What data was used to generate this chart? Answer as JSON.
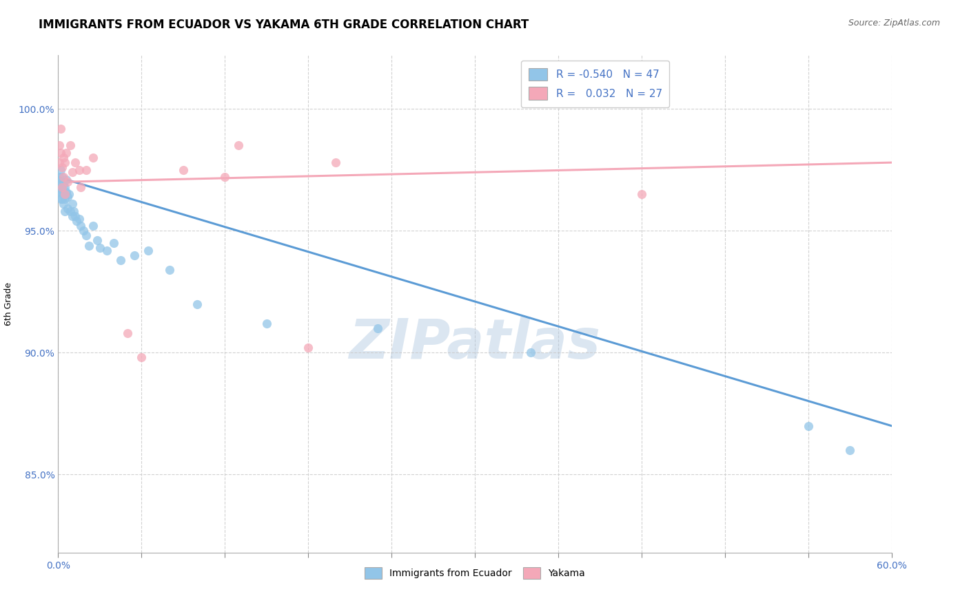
{
  "title": "IMMIGRANTS FROM ECUADOR VS YAKAMA 6TH GRADE CORRELATION CHART",
  "source": "Source: ZipAtlas.com",
  "xlabel_blue": "Immigrants from Ecuador",
  "xlabel_pink": "Yakama",
  "ylabel": "6th Grade",
  "watermark": "ZIPatlas",
  "xlim": [
    0.0,
    0.6
  ],
  "ylim": [
    0.818,
    1.022
  ],
  "legend_R_blue": "-0.540",
  "legend_N_blue": "47",
  "legend_R_pink": "0.032",
  "legend_N_pink": "27",
  "blue_color": "#92C5E8",
  "pink_color": "#F4A8B8",
  "blue_line_color": "#5B9BD5",
  "pink_line_color": "#F4A8B8",
  "blue_scatter_x": [
    0.001,
    0.001,
    0.001,
    0.002,
    0.002,
    0.002,
    0.002,
    0.003,
    0.003,
    0.003,
    0.004,
    0.004,
    0.004,
    0.005,
    0.005,
    0.005,
    0.006,
    0.006,
    0.007,
    0.007,
    0.008,
    0.009,
    0.01,
    0.01,
    0.011,
    0.012,
    0.013,
    0.015,
    0.016,
    0.018,
    0.02,
    0.022,
    0.025,
    0.028,
    0.03,
    0.035,
    0.04,
    0.045,
    0.055,
    0.065,
    0.08,
    0.1,
    0.15,
    0.23,
    0.34,
    0.54,
    0.57
  ],
  "blue_scatter_y": [
    0.972,
    0.969,
    0.966,
    0.975,
    0.97,
    0.966,
    0.963,
    0.972,
    0.967,
    0.963,
    0.969,
    0.965,
    0.961,
    0.968,
    0.963,
    0.958,
    0.971,
    0.966,
    0.964,
    0.959,
    0.965,
    0.958,
    0.961,
    0.956,
    0.958,
    0.956,
    0.954,
    0.955,
    0.952,
    0.95,
    0.948,
    0.944,
    0.952,
    0.946,
    0.943,
    0.942,
    0.945,
    0.938,
    0.94,
    0.942,
    0.934,
    0.92,
    0.912,
    0.91,
    0.9,
    0.87,
    0.86
  ],
  "pink_scatter_x": [
    0.001,
    0.001,
    0.002,
    0.002,
    0.003,
    0.003,
    0.004,
    0.004,
    0.005,
    0.005,
    0.006,
    0.007,
    0.009,
    0.01,
    0.012,
    0.015,
    0.016,
    0.02,
    0.025,
    0.05,
    0.06,
    0.09,
    0.12,
    0.13,
    0.18,
    0.2,
    0.42
  ],
  "pink_scatter_y": [
    0.985,
    0.978,
    0.992,
    0.982,
    0.976,
    0.968,
    0.98,
    0.972,
    0.978,
    0.965,
    0.982,
    0.97,
    0.985,
    0.974,
    0.978,
    0.975,
    0.968,
    0.975,
    0.98,
    0.908,
    0.898,
    0.975,
    0.972,
    0.985,
    0.902,
    0.978,
    0.965
  ],
  "blue_trendline_x": [
    0.0,
    0.6
  ],
  "blue_trendline_y": [
    0.972,
    0.87
  ],
  "pink_trendline_x": [
    0.0,
    0.6
  ],
  "pink_trendline_y": [
    0.97,
    0.978
  ],
  "background_color": "#ffffff",
  "grid_color": "#cccccc",
  "title_fontsize": 12,
  "label_fontsize": 9,
  "tick_fontsize": 10,
  "watermark_fontsize": 58,
  "watermark_color": "#b0c8e0",
  "watermark_alpha": 0.45
}
